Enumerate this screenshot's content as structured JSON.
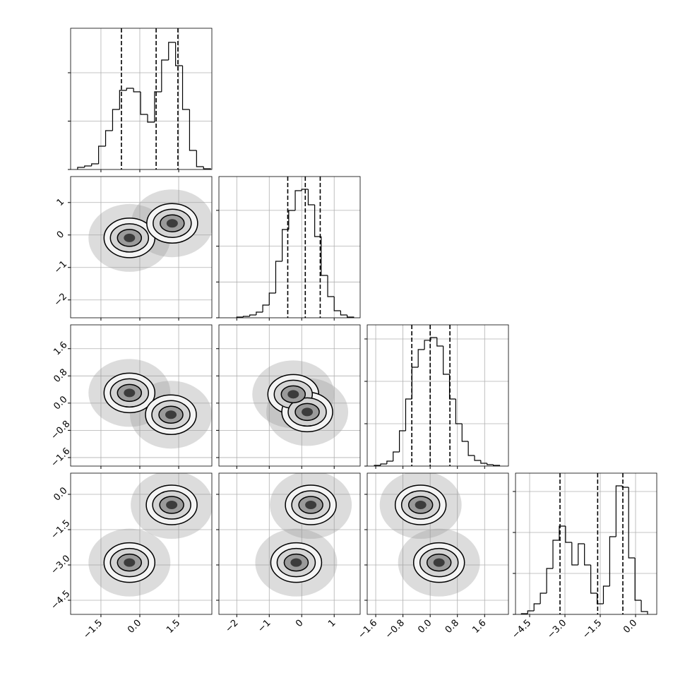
{
  "chart_data": {
    "type": "corner",
    "params": [
      {
        "lim": [
          -2.67,
          2.78
        ],
        "ticks": [
          {
            "value": -1.5,
            "label": "−1.5"
          },
          {
            "value": 0,
            "label": "0.0"
          },
          1.5
        ]
      },
      {
        "lim": [
          -2.55,
          1.8
        ],
        "ticks": [
          {
            "value": -2,
            "label": "−2"
          },
          {
            "value": -1,
            "label": "−1"
          },
          0,
          1
        ]
      },
      {
        "lim": [
          -1.85,
          2.3
        ],
        "ticks": [
          {
            "value": -1.6,
            "label": "−1.6"
          },
          {
            "value": -0.8,
            "label": "−0.8"
          },
          {
            "value": 0,
            "label": "0.0"
          },
          0.8,
          1.6
        ]
      },
      {
        "lim": [
          -5.1,
          0.9
        ],
        "ticks": [
          {
            "value": -4.5,
            "label": "−4.5"
          },
          {
            "value": -3,
            "label": "−3.0"
          },
          {
            "value": -1.5,
            "label": "−1.5"
          },
          {
            "value": 0,
            "label": "0.0"
          }
        ]
      }
    ],
    "histograms": [
      {
        "bins": [
          -2.4,
          -2.13,
          -1.86,
          -1.59,
          -1.32,
          -1.05,
          -0.78,
          -0.51,
          -0.24,
          0.03,
          0.3,
          0.57,
          0.84,
          1.11,
          1.38,
          1.65,
          1.92,
          2.19,
          2.46,
          2.73
        ],
        "values": [
          44,
          73,
          117,
          482,
          803,
          1241,
          1635,
          1679,
          1606,
          1139,
          978,
          1606,
          2263,
          2628,
          2146,
          1241,
          394,
          58,
          15
        ],
        "ylim": [
          0,
          2920
        ],
        "yticks": [
          0,
          1000,
          2000
        ],
        "quantiles": [
          -0.71,
          0.63,
          1.47
        ]
      },
      {
        "bins": [
          -2.0,
          -1.8,
          -1.6,
          -1.4,
          -1.2,
          -1.0,
          -0.8,
          -0.6,
          -0.4,
          -0.2,
          0.0,
          0.2,
          0.4,
          0.6,
          0.8,
          1.0,
          1.2,
          1.4,
          1.6
        ],
        "values": [
          20,
          39,
          79,
          158,
          355,
          690,
          1578,
          2466,
          2998,
          3550,
          3590,
          3156,
          2268,
          1183,
          592,
          197,
          79,
          20
        ],
        "ylim": [
          0,
          3945
        ],
        "yticks": [
          0,
          1000,
          2000,
          3000
        ],
        "quantiles": [
          -0.43,
          0.11,
          0.57
        ]
      },
      {
        "bins": [
          -1.64,
          -1.456,
          -1.272,
          -1.088,
          -0.904,
          -0.72,
          -0.536,
          -0.352,
          -0.168,
          0.016,
          0.2,
          0.384,
          0.568,
          0.752,
          0.936,
          1.12,
          1.304,
          1.488,
          1.672,
          1.856,
          2.04
        ],
        "values": [
          17,
          50,
          117,
          333,
          833,
          1583,
          2333,
          2750,
          2967,
          3033,
          2833,
          2167,
          1583,
          1000,
          583,
          250,
          133,
          67,
          33,
          17
        ],
        "ylim": [
          0,
          3333
        ],
        "yticks": [
          0,
          1000,
          2000,
          3000
        ],
        "quantiles": [
          -0.54,
          0.0,
          0.58
        ]
      },
      {
        "bins": [
          -4.85,
          -4.582,
          -4.314,
          -4.046,
          -3.778,
          -3.51,
          -3.242,
          -2.974,
          -2.706,
          -2.438,
          -2.17,
          -1.902,
          -1.634,
          -1.366,
          -1.098,
          -0.83,
          -0.562,
          -0.294,
          -0.026,
          0.242,
          0.51
        ],
        "values": [
          17,
          86,
          259,
          517,
          1121,
          1810,
          2155,
          1759,
          1207,
          1724,
          1207,
          517,
          259,
          690,
          1897,
          3138,
          3103,
          1379,
          345,
          69
        ],
        "ylim": [
          0,
          3448
        ],
        "yticks": [
          0,
          1000,
          2000,
          3000
        ],
        "quantiles": [
          -3.21,
          -1.61,
          -0.54
        ]
      }
    ],
    "pairs": [
      {
        "modes": [
          {
            "x": -0.4,
            "y": -0.09
          },
          {
            "x": 1.25,
            "y": 0.36
          }
        ]
      },
      {
        "modes": [
          {
            "x": -0.4,
            "y": 0.3
          },
          {
            "x": 1.2,
            "y": -0.34
          }
        ]
      },
      {
        "modes": [
          {
            "x": -0.26,
            "y": 0.26
          },
          {
            "x": 0.17,
            "y": -0.26
          }
        ]
      },
      {
        "modes": [
          {
            "x": -0.4,
            "y": -2.9
          },
          {
            "x": 1.23,
            "y": -0.45
          }
        ]
      },
      {
        "modes": [
          {
            "x": -0.17,
            "y": -2.9
          },
          {
            "x": 0.28,
            "y": -0.45
          }
        ]
      },
      {
        "modes": [
          {
            "x": -0.28,
            "y": -0.45
          },
          {
            "x": 0.26,
            "y": -2.9
          }
        ]
      }
    ]
  }
}
